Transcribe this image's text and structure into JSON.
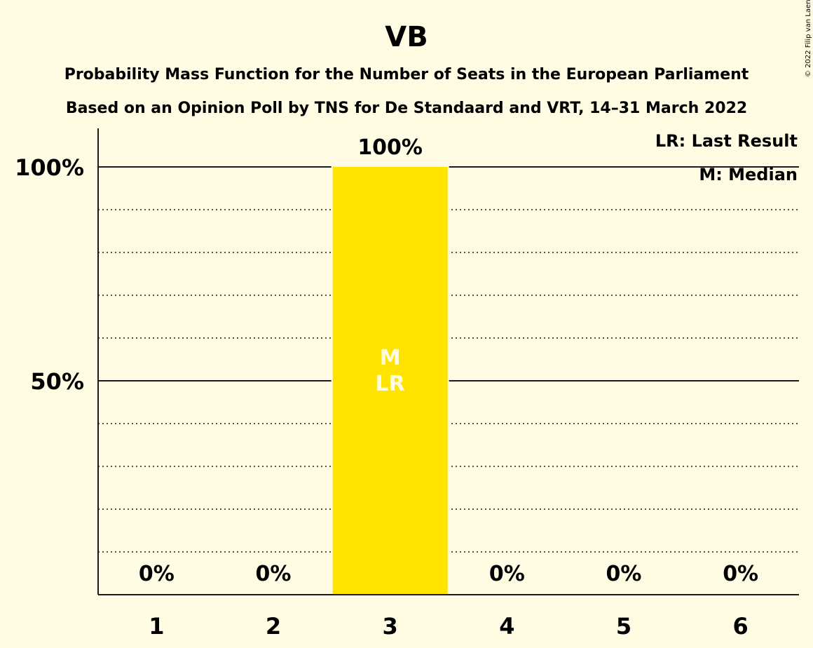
{
  "chart_data": {
    "type": "bar",
    "title": "VB",
    "subtitle_1": "Probability Mass Function for the Number of Seats in the European Parliament",
    "subtitle_2": "Based on an Opinion Poll by TNS for De Standaard and VRT, 14–31 March 2022",
    "categories": [
      "1",
      "2",
      "3",
      "4",
      "5",
      "6"
    ],
    "values": [
      0,
      0,
      100,
      0,
      0,
      0
    ],
    "value_labels": [
      "0%",
      "0%",
      "100%",
      "0%",
      "0%",
      "0%"
    ],
    "ylim": [
      0,
      100
    ],
    "y_ticks": [
      {
        "value": 50,
        "label": "50%"
      },
      {
        "value": 100,
        "label": "100%"
      }
    ],
    "grid": true,
    "legend_position": "top-right",
    "legend": [
      "LR: Last Result",
      "M: Median"
    ],
    "bar_annotations": {
      "category": "3",
      "lines": [
        "M",
        "LR"
      ]
    },
    "bar_color": "#ffe400",
    "background_color": "#fffce3",
    "copyright": "© 2022 Filip van Laenen"
  }
}
